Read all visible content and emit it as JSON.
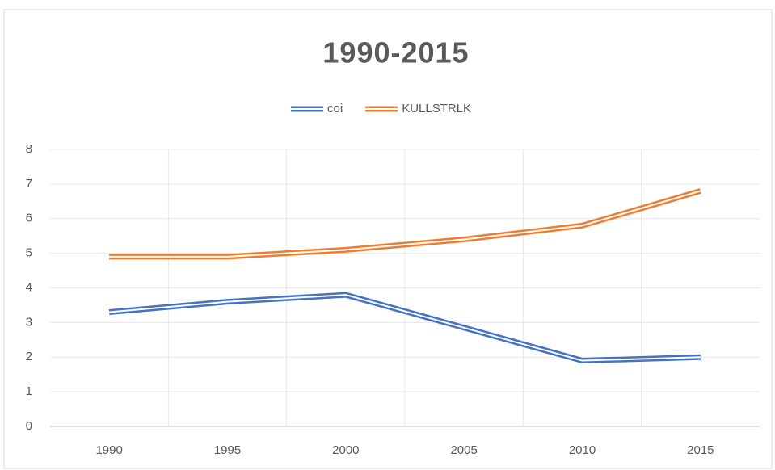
{
  "chart_data": {
    "type": "line",
    "title": "1990-2015",
    "categories": [
      "1990",
      "1995",
      "2000",
      "2005",
      "2010",
      "2015"
    ],
    "series": [
      {
        "name": "coi",
        "color": "#4472c4",
        "values": [
          3.3,
          3.6,
          3.8,
          2.85,
          1.9,
          2.0
        ]
      },
      {
        "name": "KULLSTRLK",
        "color": "#ed7d31",
        "values": [
          4.9,
          4.9,
          5.1,
          5.4,
          5.8,
          6.8
        ]
      }
    ],
    "ylim": [
      0,
      8
    ],
    "yticks": [
      0,
      1,
      2,
      3,
      4,
      5,
      6,
      7,
      8
    ],
    "grid": true,
    "legend": "top"
  }
}
